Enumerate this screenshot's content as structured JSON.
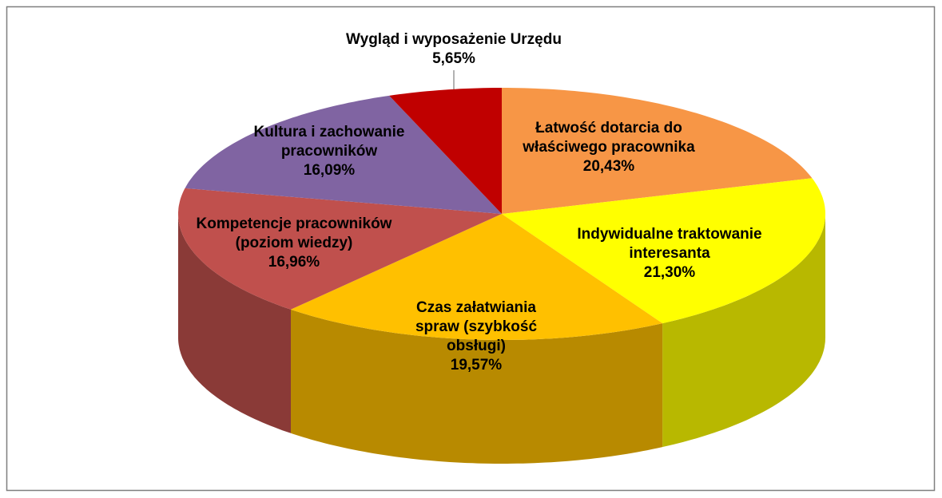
{
  "chart_data": {
    "type": "pie",
    "categories": [
      "Łatwość dotarcia do właściwego pracownika",
      "Indywidualne traktowanie interesanta",
      "Czas załatwiania spraw (szybkość obsługi)",
      "Kompetencje pracowników (poziom wiedzy)",
      "Kultura i zachowanie pracowników",
      "Wygląd i wyposażenie Urzędu"
    ],
    "values": [
      20.43,
      21.3,
      19.57,
      16.96,
      16.09,
      5.65
    ],
    "value_labels": [
      "20,43%",
      "21,30%",
      "19,57%",
      "16,96%",
      "16,09%",
      "5,65%"
    ],
    "colors": [
      "#F79646",
      "#FFFF00",
      "#FFC000",
      "#C0504D",
      "#8064A2",
      "#C00000"
    ]
  }
}
